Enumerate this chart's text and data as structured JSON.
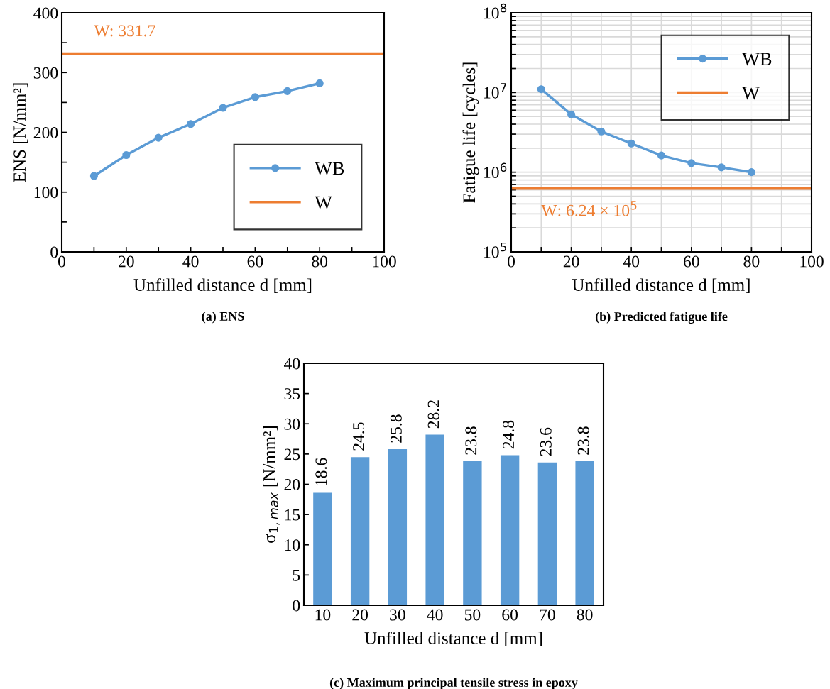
{
  "chart_data": [
    {
      "type": "line",
      "title": "(a) ENS",
      "xlabel": "Unfilled distance d [mm]",
      "ylabel": "ENS [N/mm²]",
      "xlim": [
        0,
        100
      ],
      "xticks": [
        0,
        {
          "value": 10,
          "label": null
        },
        20,
        {
          "value": 30,
          "label": null
        },
        40,
        {
          "value": 50,
          "label": null
        },
        60,
        {
          "value": 70,
          "label": null
        },
        80,
        {
          "value": 90,
          "label": null
        },
        100
      ],
      "ylim": [
        0,
        400
      ],
      "yticks": [
        0,
        {
          "value": 50,
          "label": null
        },
        100,
        {
          "value": 150,
          "label": null
        },
        200,
        {
          "value": 250,
          "label": null
        },
        300,
        {
          "value": 350,
          "label": null
        },
        400
      ],
      "grid": false,
      "legend": "bottom right",
      "series": [
        {
          "name": "WB",
          "color": "#5b9bd5",
          "marker": "circle",
          "x": [
            10,
            20,
            30,
            40,
            50,
            60,
            70,
            80
          ],
          "values": [
            127,
            162,
            191,
            214,
            241,
            259,
            269,
            282
          ]
        },
        {
          "name": "W",
          "color": "#ed7d31",
          "marker": "none",
          "x": [
            0,
            100
          ],
          "values": [
            331.7,
            331.7
          ]
        }
      ],
      "annotations": [
        {
          "text": "W: 331.7",
          "x": 10,
          "y": 331.7
        }
      ]
    },
    {
      "type": "line",
      "title": "(b) Predicted fatigue life",
      "xlabel": "Unfilled distance d [mm]",
      "ylabel": "Fatigue life [cycles]",
      "log": "y",
      "xlim": [
        0,
        100
      ],
      "xticks": [
        0,
        {
          "value": 10,
          "label": null
        },
        20,
        {
          "value": 30,
          "label": null
        },
        40,
        {
          "value": 50,
          "label": null
        },
        60,
        {
          "value": 70,
          "label": null
        },
        80,
        {
          "value": 90,
          "label": null
        },
        100
      ],
      "ylim": [
        100000,
        100000000
      ],
      "yticks": [
        {
          "value": 100000,
          "label": "10$^{5}$"
        },
        {
          "value": 200000,
          "label": null
        },
        {
          "value": 300000,
          "label": null
        },
        {
          "value": 400000,
          "label": null
        },
        {
          "value": 500000,
          "label": null
        },
        {
          "value": 600000,
          "label": null
        },
        {
          "value": 700000,
          "label": null
        },
        {
          "value": 800000,
          "label": null
        },
        {
          "value": 900000,
          "label": null
        },
        {
          "value": 1000000,
          "label": "10$^{6}$"
        },
        {
          "value": 2000000,
          "label": null
        },
        {
          "value": 3000000,
          "label": null
        },
        {
          "value": 4000000,
          "label": null
        },
        {
          "value": 5000000,
          "label": null
        },
        {
          "value": 6000000,
          "label": null
        },
        {
          "value": 7000000,
          "label": null
        },
        {
          "value": 8000000,
          "label": null
        },
        {
          "value": 9000000,
          "label": null
        },
        {
          "value": 10000000,
          "label": "10$^{7}$"
        },
        {
          "value": 20000000,
          "label": null
        },
        {
          "value": 30000000,
          "label": null
        },
        {
          "value": 40000000,
          "label": null
        },
        {
          "value": 50000000,
          "label": null
        },
        {
          "value": 60000000,
          "label": null
        },
        {
          "value": 70000000,
          "label": null
        },
        {
          "value": 80000000,
          "label": null
        },
        {
          "value": 90000000,
          "label": null
        },
        {
          "value": 100000000,
          "label": "10$^{8}$"
        }
      ],
      "grid": true,
      "legend": "top right",
      "series": [
        {
          "name": "WB",
          "color": "#5b9bd5",
          "marker": "circle",
          "x": [
            10,
            20,
            30,
            40,
            50,
            60,
            70,
            80
          ],
          "values": [
            11000000,
            5300000,
            3240000,
            2290000,
            1620000,
            1300000,
            1150000,
            1000000
          ]
        },
        {
          "name": "W",
          "color": "#ed7d31",
          "marker": "none",
          "x": [
            0,
            100
          ],
          "values": [
            624000,
            624000
          ]
        }
      ],
      "annotations": [
        {
          "text": "W: 6.24 × 10$^{5}$",
          "x": 10,
          "y": 624000
        }
      ]
    },
    {
      "type": "bar",
      "title": "(c) Maximum principal tensile stress in epoxy",
      "xlabel": "Unfilled distance d [mm]",
      "ylabel": "σ$_{1,max}$ [N/mm²]",
      "categories": [
        "10",
        "20",
        "30",
        "40",
        "50",
        "60",
        "70",
        "80"
      ],
      "values": [
        18.6,
        24.5,
        25.8,
        28.2,
        23.8,
        24.8,
        23.6,
        23.8
      ],
      "color": "#5b9bd5",
      "ylim": [
        0,
        40
      ],
      "yticks": [
        0,
        5,
        10,
        15,
        20,
        25,
        30,
        35,
        40
      ],
      "data_labels": true,
      "grid": false,
      "legend": false
    }
  ]
}
